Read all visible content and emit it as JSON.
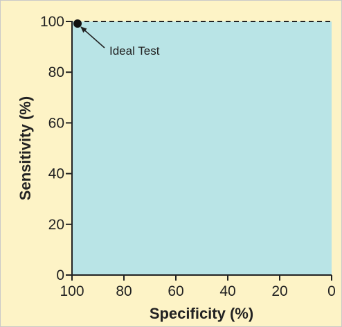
{
  "chart_data": {
    "type": "line",
    "title": "",
    "xlabel": "Specificity (%)",
    "ylabel": "Sensitivity (%)",
    "xlim": [
      100,
      0
    ],
    "ylim": [
      0,
      100
    ],
    "x_reversed": true,
    "x_ticks": [
      100,
      80,
      60,
      40,
      20,
      0
    ],
    "y_ticks": [
      0,
      20,
      40,
      60,
      80,
      100
    ],
    "grid": false,
    "background_color": "#fdf3c6",
    "plot_fill_color": "#b9e4e6",
    "line_color": "#222222",
    "series": [
      {
        "style": "dashed",
        "x": [
          100,
          100,
          0
        ],
        "y": [
          0,
          100,
          100
        ]
      }
    ],
    "points": [
      {
        "x": 100,
        "y": 100
      }
    ],
    "annotations": [
      {
        "text": "Ideal Test",
        "x": 100,
        "y": 100
      }
    ]
  }
}
